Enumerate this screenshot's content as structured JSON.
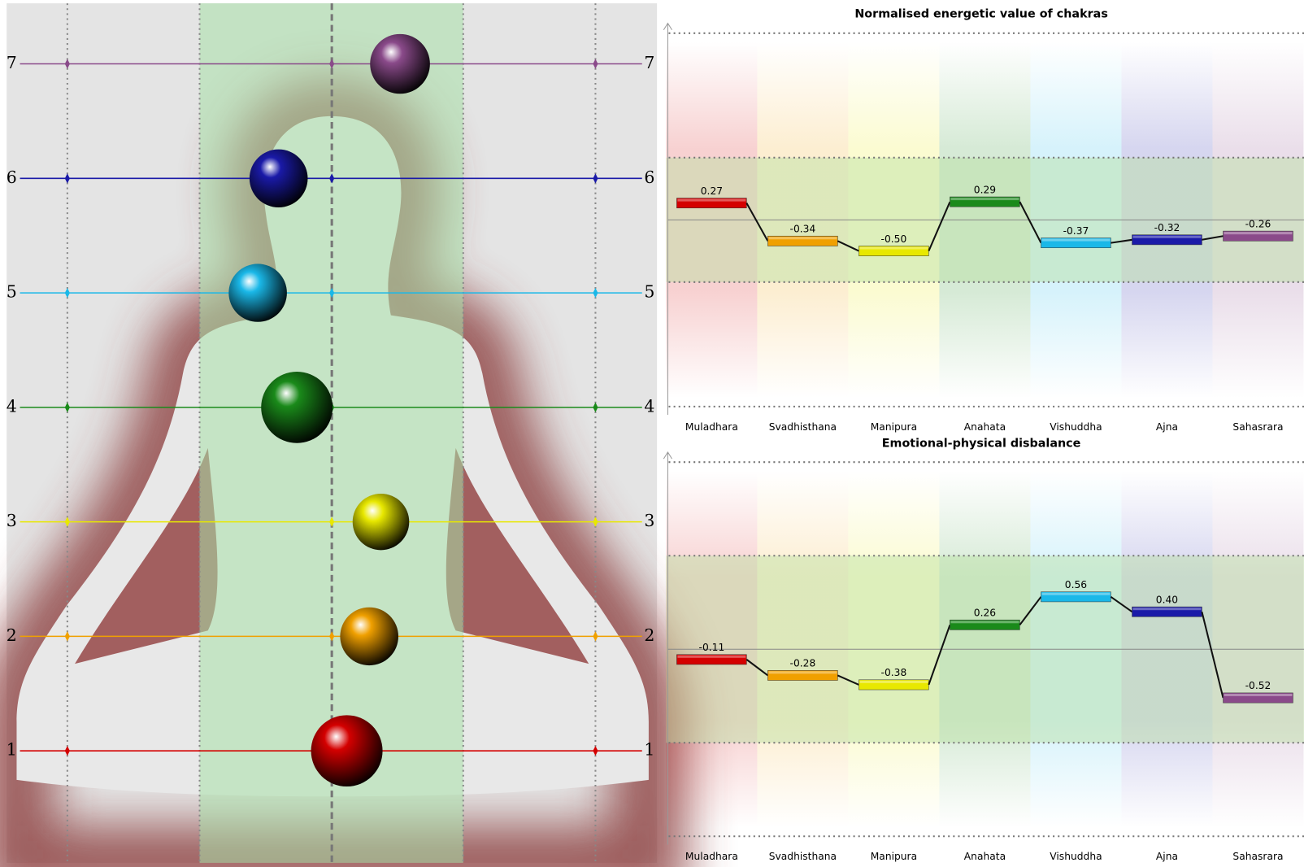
{
  "diagram": {
    "levels": [
      1,
      2,
      3,
      4,
      5,
      6,
      7
    ]
  },
  "chart_data": [
    {
      "type": "bar",
      "title": "Normalised energetic value of chakras",
      "categories": [
        "Muladhara",
        "Svadhisthana",
        "Manipura",
        "Anahata",
        "Vishuddha",
        "Ajna",
        "Sahasrara"
      ],
      "values": [
        0.27,
        -0.34,
        -0.5,
        0.29,
        -0.37,
        -0.32,
        -0.26
      ],
      "value_labels": [
        "0.27",
        "-0.34",
        "-0.50",
        "0.29",
        "-0.37",
        "-0.32",
        "-0.26"
      ],
      "colors": [
        "#d40000",
        "#f0a000",
        "#e8e800",
        "#1a8a1a",
        "#1ab8e8",
        "#1a1aa8",
        "#8a4a8a"
      ],
      "ylim": [
        -3,
        3
      ],
      "grid_lines": [
        -3,
        -1,
        1,
        3
      ]
    },
    {
      "type": "bar",
      "title": "Emotional-physical disbalance",
      "categories": [
        "Muladhara",
        "Svadhisthana",
        "Manipura",
        "Anahata",
        "Vishuddha",
        "Ajna",
        "Sahasrara"
      ],
      "values": [
        -0.11,
        -0.28,
        -0.38,
        0.26,
        0.56,
        0.4,
        -0.52
      ],
      "value_labels": [
        "-0.11",
        "-0.28",
        "-0.38",
        "0.26",
        "0.56",
        "0.40",
        "-0.52"
      ],
      "colors": [
        "#d40000",
        "#f0a000",
        "#e8e800",
        "#1a8a1a",
        "#1ab8e8",
        "#1a1aa8",
        "#8a4a8a"
      ],
      "ylim": [
        -2,
        2
      ],
      "grid_lines": [
        -2,
        -1,
        1,
        2
      ]
    }
  ]
}
